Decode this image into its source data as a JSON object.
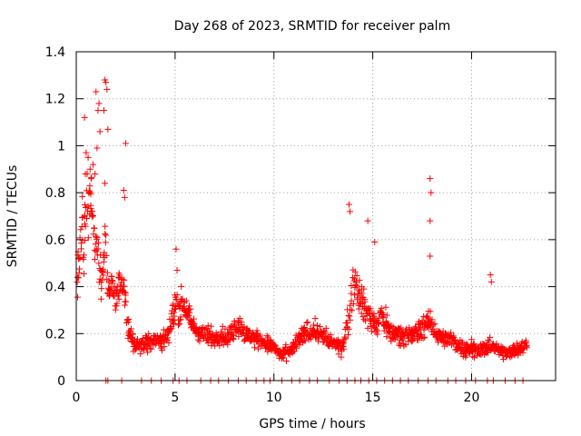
{
  "chart_data": {
    "type": "scatter",
    "title": "Day 268 of 2023, SRMTID for receiver palm",
    "xlabel": "GPS time / hours",
    "ylabel": "SRMTID / TECUs",
    "xlim": [
      0,
      24.25
    ],
    "ylim": [
      0,
      1.4
    ],
    "xticks": [
      0,
      5,
      10,
      15,
      20
    ],
    "xtick_labels": [
      "0",
      "5",
      "10",
      "15",
      "20"
    ],
    "yticks": [
      0,
      0.2,
      0.4,
      0.6,
      0.8,
      1,
      1.2,
      1.4
    ],
    "ytick_labels": [
      "0",
      "0.2",
      "0.4",
      "0.6",
      "0.8",
      "1",
      "1.2",
      "1.4"
    ],
    "grid": true,
    "marker": "+",
    "color": "#ff0000",
    "series": [
      {
        "name": "palm",
        "sampling_interval_hours": 0.025,
        "x": [
          0.05,
          0.1,
          0.15,
          0.2,
          0.25,
          0.3,
          0.35,
          0.45,
          0.55,
          0.6,
          0.7,
          0.8,
          0.9,
          1.0,
          1.1,
          1.2,
          1.3,
          1.4,
          1.45,
          1.5,
          1.55,
          1.6,
          1.7,
          1.8,
          1.9,
          2.0,
          2.2,
          2.4,
          2.5,
          2.6,
          2.7,
          2.8,
          3.0,
          3.3,
          3.6,
          4.0,
          4.3,
          4.6,
          4.8,
          5.0,
          5.2,
          5.4,
          5.6,
          5.8,
          6.0,
          6.3,
          6.6,
          7.0,
          7.3,
          7.6,
          8.0,
          8.2,
          8.5,
          9.0,
          9.3,
          9.6,
          9.8,
          10.0,
          10.2,
          10.4,
          10.6,
          10.8,
          11.0,
          11.3,
          11.6,
          12.0,
          12.3,
          12.6,
          13.0,
          13.4,
          13.6,
          13.8,
          13.9,
          14.0,
          14.2,
          14.4,
          14.6,
          14.8,
          15.0,
          15.2,
          15.4,
          15.6,
          15.8,
          16.0,
          16.5,
          17.0,
          17.4,
          17.8,
          18.0,
          18.3,
          18.6,
          19.0,
          19.5,
          20.0,
          20.5,
          20.8,
          21.0,
          21.3,
          21.6,
          22.0,
          22.3,
          22.6,
          22.8
        ],
        "y": [
          0.42,
          0.5,
          0.48,
          0.55,
          0.6,
          0.64,
          0.58,
          0.7,
          0.78,
          0.72,
          0.8,
          0.72,
          0.65,
          0.6,
          0.56,
          0.5,
          0.42,
          0.52,
          0.6,
          0.62,
          0.45,
          0.38,
          0.4,
          0.42,
          0.38,
          0.35,
          0.4,
          0.38,
          0.32,
          0.24,
          0.2,
          0.18,
          0.16,
          0.15,
          0.16,
          0.18,
          0.16,
          0.2,
          0.25,
          0.32,
          0.3,
          0.35,
          0.3,
          0.25,
          0.22,
          0.2,
          0.19,
          0.18,
          0.2,
          0.18,
          0.22,
          0.24,
          0.2,
          0.18,
          0.17,
          0.16,
          0.15,
          0.14,
          0.12,
          0.1,
          0.12,
          0.12,
          0.14,
          0.18,
          0.2,
          0.22,
          0.2,
          0.18,
          0.16,
          0.14,
          0.2,
          0.26,
          0.35,
          0.42,
          0.4,
          0.36,
          0.3,
          0.28,
          0.26,
          0.22,
          0.28,
          0.26,
          0.22,
          0.2,
          0.2,
          0.19,
          0.22,
          0.24,
          0.24,
          0.2,
          0.18,
          0.17,
          0.14,
          0.14,
          0.13,
          0.14,
          0.15,
          0.13,
          0.12,
          0.13,
          0.13,
          0.14,
          0.15
        ],
        "spread": [
          0.14,
          0.16,
          0.18,
          0.2,
          0.22,
          0.22,
          0.2,
          0.2,
          0.2,
          0.2,
          0.2,
          0.2,
          0.2,
          0.2,
          0.18,
          0.16,
          0.14,
          0.14,
          0.14,
          0.14,
          0.12,
          0.1,
          0.1,
          0.1,
          0.1,
          0.1,
          0.1,
          0.1,
          0.09,
          0.08,
          0.07,
          0.06,
          0.06,
          0.06,
          0.06,
          0.06,
          0.06,
          0.07,
          0.08,
          0.09,
          0.09,
          0.09,
          0.08,
          0.07,
          0.06,
          0.06,
          0.06,
          0.06,
          0.06,
          0.06,
          0.07,
          0.07,
          0.06,
          0.05,
          0.05,
          0.05,
          0.05,
          0.04,
          0.04,
          0.04,
          0.04,
          0.04,
          0.05,
          0.06,
          0.06,
          0.06,
          0.06,
          0.06,
          0.05,
          0.05,
          0.06,
          0.09,
          0.12,
          0.14,
          0.13,
          0.12,
          0.1,
          0.09,
          0.08,
          0.07,
          0.08,
          0.08,
          0.07,
          0.06,
          0.06,
          0.06,
          0.07,
          0.07,
          0.07,
          0.06,
          0.05,
          0.05,
          0.05,
          0.05,
          0.04,
          0.04,
          0.05,
          0.04,
          0.04,
          0.04,
          0.04,
          0.04,
          0.04
        ],
        "zeros": [
          1.5,
          1.6,
          2.3,
          3.3,
          3.8,
          4.3,
          4.9,
          5.2,
          5.6,
          6.3,
          6.8,
          7.2,
          7.7,
          8.2,
          8.6,
          9.1,
          9.5,
          9.8,
          10.4,
          10.9,
          11.3,
          11.8,
          12.2,
          12.8,
          13.3,
          13.7,
          14.1,
          14.4,
          14.8,
          15.2,
          15.6,
          16.0,
          16.4,
          16.8,
          17.3,
          17.8,
          18.2,
          18.8,
          19.2,
          19.7,
          20.2,
          20.8,
          21.1,
          21.7,
          22.2,
          22.6
        ],
        "spikes": [
          {
            "x": 0.42,
            "y": 1.12
          },
          {
            "x": 0.5,
            "y": 0.97
          },
          {
            "x": 0.6,
            "y": 0.95
          },
          {
            "x": 0.7,
            "y": 0.9
          },
          {
            "x": 0.75,
            "y": 0.86
          },
          {
            "x": 0.85,
            "y": 0.92
          },
          {
            "x": 0.95,
            "y": 0.88
          },
          {
            "x": 1.05,
            "y": 0.99
          },
          {
            "x": 1.0,
            "y": 1.23
          },
          {
            "x": 1.1,
            "y": 1.15
          },
          {
            "x": 1.15,
            "y": 1.18
          },
          {
            "x": 1.2,
            "y": 1.06
          },
          {
            "x": 1.45,
            "y": 1.28
          },
          {
            "x": 1.5,
            "y": 1.27
          },
          {
            "x": 1.55,
            "y": 1.24
          },
          {
            "x": 1.6,
            "y": 1.07
          },
          {
            "x": 1.4,
            "y": 1.15
          },
          {
            "x": 1.45,
            "y": 0.84
          },
          {
            "x": 2.5,
            "y": 1.01
          },
          {
            "x": 2.4,
            "y": 0.81
          },
          {
            "x": 2.45,
            "y": 0.78
          },
          {
            "x": 5.05,
            "y": 0.56
          },
          {
            "x": 5.1,
            "y": 0.47
          },
          {
            "x": 13.8,
            "y": 0.75
          },
          {
            "x": 13.85,
            "y": 0.72
          },
          {
            "x": 14.75,
            "y": 0.68
          },
          {
            "x": 15.1,
            "y": 0.59
          },
          {
            "x": 17.9,
            "y": 0.86
          },
          {
            "x": 17.95,
            "y": 0.8
          },
          {
            "x": 17.9,
            "y": 0.68
          },
          {
            "x": 17.9,
            "y": 0.53
          },
          {
            "x": 20.95,
            "y": 0.45
          },
          {
            "x": 21.0,
            "y": 0.42
          }
        ]
      }
    ]
  }
}
